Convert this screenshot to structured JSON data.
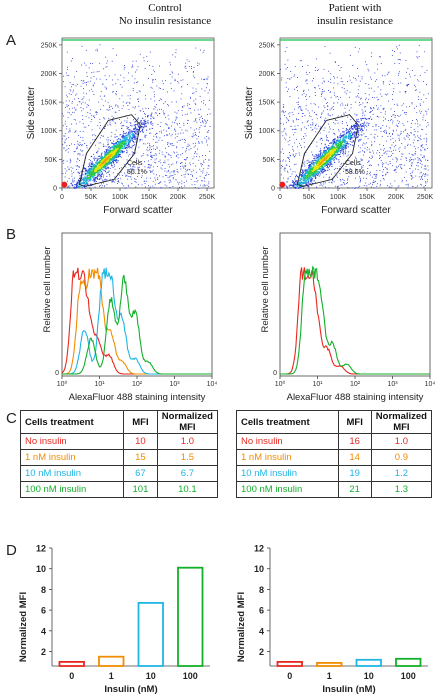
{
  "panel_letters": [
    "A",
    "B",
    "C",
    "D"
  ],
  "column_titles": {
    "left": [
      "Control",
      "No insulin resistance"
    ],
    "right": [
      "Patient with",
      "insulin resistance"
    ]
  },
  "colors": {
    "no_insulin": "#e8281f",
    "1nM": "#f28c00",
    "10nM": "#1fb6e6",
    "100nM": "#12b02a"
  },
  "chart_data": [
    {
      "type": "scatter",
      "panel": "A",
      "side": "control",
      "xlabel": "Forward scatter",
      "ylabel": "Side scatter",
      "xticks": [
        "0",
        "50K",
        "100K",
        "150K",
        "200K",
        "250K"
      ],
      "yticks": [
        "0",
        "50K",
        "100K",
        "150K",
        "200K",
        "250K"
      ],
      "xlim": [
        0,
        262000
      ],
      "ylim": [
        0,
        262000
      ],
      "gate_label": "Cells",
      "gate_percent": "56.1%"
    },
    {
      "type": "scatter",
      "panel": "A",
      "side": "patient",
      "xlabel": "Forward scatter",
      "ylabel": "Side scatter",
      "xticks": [
        "0",
        "50K",
        "100K",
        "150K",
        "200K",
        "250K"
      ],
      "yticks": [
        "0",
        "50K",
        "100K",
        "150K",
        "200K",
        "250K"
      ],
      "xlim": [
        0,
        262000
      ],
      "ylim": [
        0,
        262000
      ],
      "gate_label": "Cells",
      "gate_percent": "58.6%"
    },
    {
      "type": "line",
      "panel": "B",
      "side": "control",
      "xlabel": "AlexaFluor 488 staining intensity",
      "ylabel": "Relative cell number",
      "xticks": [
        "10⁰",
        "10¹",
        "10²",
        "10³",
        "10⁴"
      ],
      "x_scale": "log",
      "xlim": [
        1,
        10000
      ],
      "yticks": [
        "0"
      ],
      "series": [
        {
          "color": "#e8281f",
          "peak_x": 3
        },
        {
          "color": "#f28c00",
          "peak_x": 6
        },
        {
          "color": "#1fb6e6",
          "peak_x": 20
        },
        {
          "color": "#12b02a",
          "peak_x": 45
        }
      ]
    },
    {
      "type": "line",
      "panel": "B",
      "side": "patient",
      "xlabel": "AlexaFluor 488 staining intensity",
      "ylabel": "Relative cell number",
      "xticks": [
        "10⁰",
        "10¹",
        "10²",
        "10³",
        "10⁴"
      ],
      "x_scale": "log",
      "xlim": [
        1,
        10000
      ],
      "yticks": [
        "0"
      ],
      "series": [
        {
          "color": "#e8281f",
          "peak_x": 5
        },
        {
          "color": "#12b02a",
          "peak_x": 7
        }
      ]
    },
    {
      "type": "table",
      "panel": "C",
      "side": "control",
      "columns": [
        "Cells treatment",
        "MFI",
        "Normalized MFI"
      ],
      "rows": [
        {
          "treatment": "No insulin",
          "mfi": "10",
          "norm": "1.0",
          "color": "#e8281f"
        },
        {
          "treatment": "1 nM insulin",
          "mfi": "15",
          "norm": "1.5",
          "color": "#f28c00"
        },
        {
          "treatment": "10 nM insulin",
          "mfi": "67",
          "norm": "6.7",
          "color": "#1fb6e6"
        },
        {
          "treatment": "100 nM insulin",
          "mfi": "101",
          "norm": "10.1",
          "color": "#12b02a"
        }
      ]
    },
    {
      "type": "table",
      "panel": "C",
      "side": "patient",
      "columns": [
        "Cells treatment",
        "MFI",
        "Normalized MFI"
      ],
      "rows": [
        {
          "treatment": "No insulin",
          "mfi": "16",
          "norm": "1.0",
          "color": "#e8281f"
        },
        {
          "treatment": "1 nM insulin",
          "mfi": "14",
          "norm": "0.9",
          "color": "#f28c00"
        },
        {
          "treatment": "10 nM insulin",
          "mfi": "19",
          "norm": "1.2",
          "color": "#1fb6e6"
        },
        {
          "treatment": "100 nM insulin",
          "mfi": "21",
          "norm": "1.3",
          "color": "#12b02a"
        }
      ]
    },
    {
      "type": "bar",
      "panel": "D",
      "side": "control",
      "categories": [
        "0",
        "1",
        "10",
        "100"
      ],
      "values": [
        1.0,
        1.5,
        6.7,
        10.1
      ],
      "xlabel": "Insulin (nM)",
      "ylabel": "Normalized MFI",
      "yticks": [
        "2",
        "4",
        "6",
        "8",
        "10",
        "12"
      ],
      "ylim": [
        0.6,
        12
      ]
    },
    {
      "type": "bar",
      "panel": "D",
      "side": "patient",
      "categories": [
        "0",
        "1",
        "10",
        "100"
      ],
      "values": [
        1.0,
        0.9,
        1.2,
        1.3
      ],
      "xlabel": "Insulin (nM)",
      "ylabel": "Normalized MFI",
      "yticks": [
        "2",
        "4",
        "6",
        "8",
        "10",
        "12"
      ],
      "ylim": [
        0.6,
        12
      ]
    }
  ]
}
